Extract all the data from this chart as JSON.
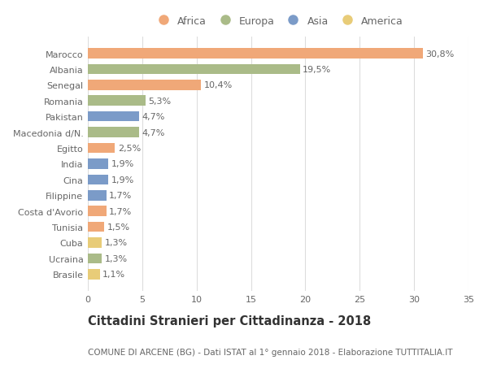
{
  "countries": [
    "Marocco",
    "Albania",
    "Senegal",
    "Romania",
    "Pakistan",
    "Macedonia d/N.",
    "Egitto",
    "India",
    "Cina",
    "Filippine",
    "Costa d'Avorio",
    "Tunisia",
    "Cuba",
    "Ucraina",
    "Brasile"
  ],
  "values": [
    30.8,
    19.5,
    10.4,
    5.3,
    4.7,
    4.7,
    2.5,
    1.9,
    1.9,
    1.7,
    1.7,
    1.5,
    1.3,
    1.3,
    1.1
  ],
  "labels": [
    "30,8%",
    "19,5%",
    "10,4%",
    "5,3%",
    "4,7%",
    "4,7%",
    "2,5%",
    "1,9%",
    "1,9%",
    "1,7%",
    "1,7%",
    "1,5%",
    "1,3%",
    "1,3%",
    "1,1%"
  ],
  "colors": [
    "#F0A878",
    "#AABB88",
    "#F0A878",
    "#AABB88",
    "#7B9BC8",
    "#AABB88",
    "#F0A878",
    "#7B9BC8",
    "#7B9BC8",
    "#7B9BC8",
    "#F0A878",
    "#F0A878",
    "#E8CC78",
    "#AABB88",
    "#E8CC78"
  ],
  "legend_labels": [
    "Africa",
    "Europa",
    "Asia",
    "America"
  ],
  "legend_colors": [
    "#F0A878",
    "#AABB88",
    "#7B9BC8",
    "#E8CC78"
  ],
  "title": "Cittadini Stranieri per Cittadinanza - 2018",
  "subtitle": "COMUNE DI ARCENE (BG) - Dati ISTAT al 1° gennaio 2018 - Elaborazione TUTTITALIA.IT",
  "xlim": [
    0,
    35
  ],
  "xticks": [
    0,
    5,
    10,
    15,
    20,
    25,
    30,
    35
  ],
  "background_color": "#ffffff",
  "grid_color": "#dddddd",
  "bar_height": 0.65,
  "title_fontsize": 10.5,
  "subtitle_fontsize": 7.5,
  "tick_fontsize": 8,
  "label_fontsize": 8
}
